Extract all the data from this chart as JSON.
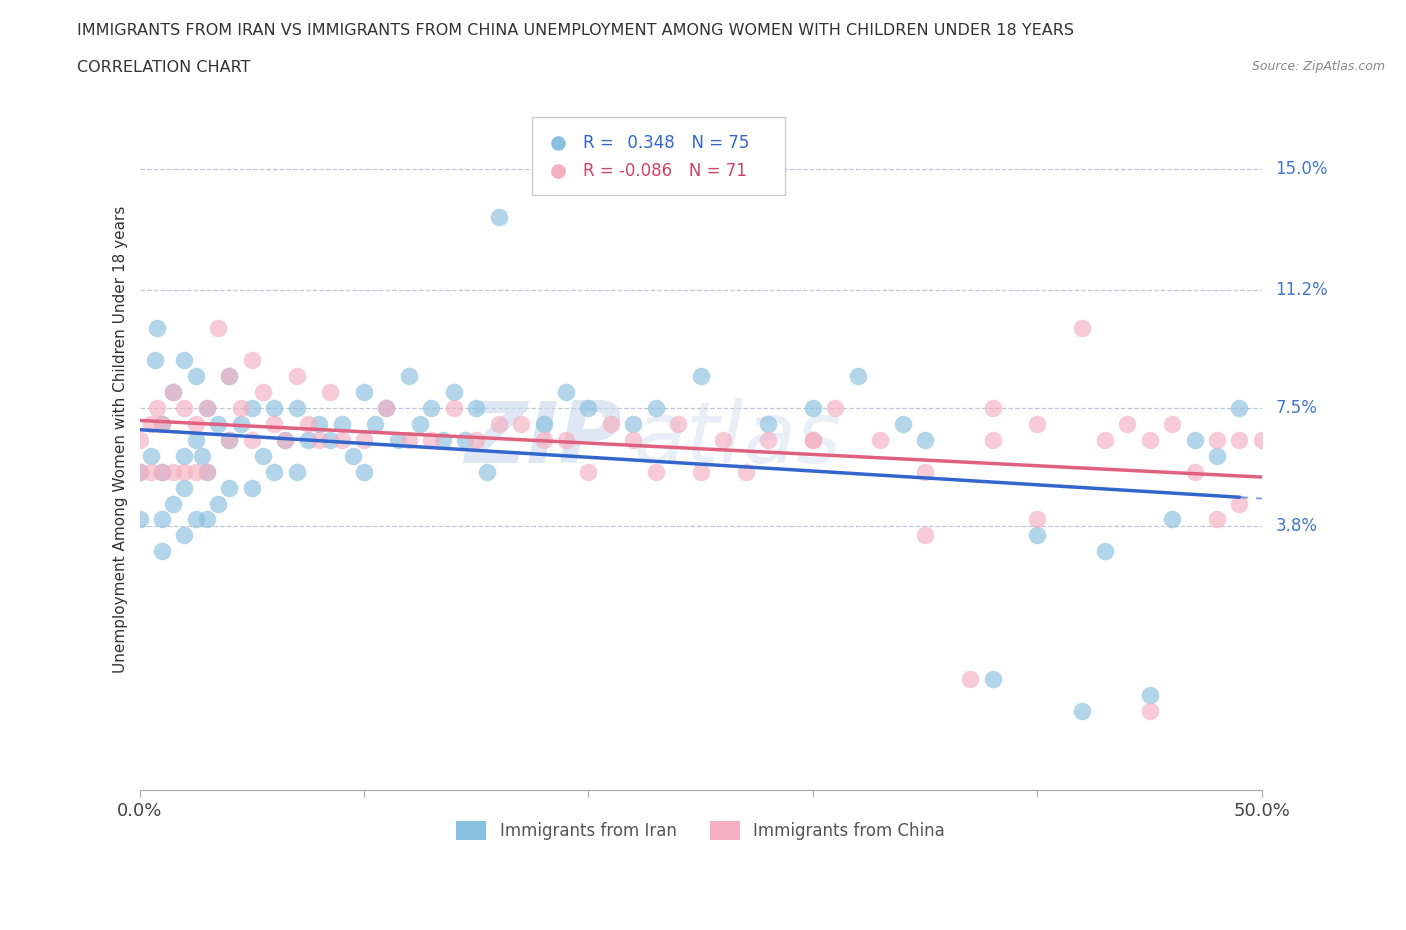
{
  "title_line1": "IMMIGRANTS FROM IRAN VS IMMIGRANTS FROM CHINA UNEMPLOYMENT AMONG WOMEN WITH CHILDREN UNDER 18 YEARS",
  "title_line2": "CORRELATION CHART",
  "source_text": "Source: ZipAtlas.com",
  "ylabel": "Unemployment Among Women with Children Under 18 years",
  "ytick_labels": [
    "3.8%",
    "7.5%",
    "11.2%",
    "15.0%"
  ],
  "ytick_values": [
    0.038,
    0.075,
    0.112,
    0.15
  ],
  "xlim": [
    0.0,
    0.5
  ],
  "ylim": [
    -0.045,
    0.175
  ],
  "iran_R": 0.348,
  "iran_N": 75,
  "china_R": -0.086,
  "china_N": 71,
  "iran_color": "#89bfdf",
  "china_color": "#f4afc0",
  "iran_line_color": "#3366cc",
  "china_line_color": "#e06080",
  "watermark_text": "ZIPatlas",
  "legend_iran_label": "Immigrants from Iran",
  "legend_china_label": "Immigrants from China",
  "iran_scatter_x": [
    0.0,
    0.0,
    0.005,
    0.007,
    0.008,
    0.01,
    0.01,
    0.01,
    0.01,
    0.015,
    0.015,
    0.02,
    0.02,
    0.02,
    0.02,
    0.025,
    0.025,
    0.025,
    0.028,
    0.03,
    0.03,
    0.03,
    0.035,
    0.035,
    0.04,
    0.04,
    0.04,
    0.045,
    0.05,
    0.05,
    0.055,
    0.06,
    0.06,
    0.065,
    0.07,
    0.07,
    0.075,
    0.08,
    0.085,
    0.09,
    0.095,
    0.1,
    0.1,
    0.105,
    0.11,
    0.115,
    0.12,
    0.125,
    0.13,
    0.135,
    0.14,
    0.145,
    0.15,
    0.155,
    0.16,
    0.18,
    0.19,
    0.2,
    0.22,
    0.23,
    0.25,
    0.28,
    0.3,
    0.32,
    0.34,
    0.35,
    0.38,
    0.4,
    0.42,
    0.43,
    0.45,
    0.46,
    0.47,
    0.48,
    0.49
  ],
  "iran_scatter_y": [
    0.04,
    0.055,
    0.06,
    0.09,
    0.1,
    0.07,
    0.055,
    0.04,
    0.03,
    0.08,
    0.045,
    0.09,
    0.06,
    0.05,
    0.035,
    0.085,
    0.065,
    0.04,
    0.06,
    0.075,
    0.055,
    0.04,
    0.07,
    0.045,
    0.085,
    0.065,
    0.05,
    0.07,
    0.075,
    0.05,
    0.06,
    0.075,
    0.055,
    0.065,
    0.075,
    0.055,
    0.065,
    0.07,
    0.065,
    0.07,
    0.06,
    0.08,
    0.055,
    0.07,
    0.075,
    0.065,
    0.085,
    0.07,
    0.075,
    0.065,
    0.08,
    0.065,
    0.075,
    0.055,
    0.135,
    0.07,
    0.08,
    0.075,
    0.07,
    0.075,
    0.085,
    0.07,
    0.075,
    0.085,
    0.07,
    0.065,
    -0.01,
    0.035,
    -0.02,
    0.03,
    -0.015,
    0.04,
    0.065,
    0.06,
    0.075
  ],
  "china_scatter_x": [
    0.0,
    0.0,
    0.005,
    0.005,
    0.008,
    0.01,
    0.01,
    0.015,
    0.015,
    0.02,
    0.02,
    0.025,
    0.025,
    0.03,
    0.03,
    0.035,
    0.04,
    0.04,
    0.045,
    0.05,
    0.05,
    0.055,
    0.06,
    0.065,
    0.07,
    0.075,
    0.08,
    0.085,
    0.09,
    0.1,
    0.11,
    0.12,
    0.13,
    0.14,
    0.15,
    0.16,
    0.17,
    0.18,
    0.19,
    0.2,
    0.21,
    0.22,
    0.23,
    0.24,
    0.25,
    0.26,
    0.27,
    0.28,
    0.3,
    0.31,
    0.33,
    0.35,
    0.37,
    0.38,
    0.38,
    0.4,
    0.42,
    0.43,
    0.44,
    0.45,
    0.46,
    0.47,
    0.48,
    0.49,
    0.49,
    0.5,
    0.3,
    0.35,
    0.4,
    0.45,
    0.48
  ],
  "china_scatter_y": [
    0.065,
    0.055,
    0.07,
    0.055,
    0.075,
    0.07,
    0.055,
    0.08,
    0.055,
    0.075,
    0.055,
    0.07,
    0.055,
    0.075,
    0.055,
    0.1,
    0.085,
    0.065,
    0.075,
    0.09,
    0.065,
    0.08,
    0.07,
    0.065,
    0.085,
    0.07,
    0.065,
    0.08,
    0.065,
    0.065,
    0.075,
    0.065,
    0.065,
    0.075,
    0.065,
    0.07,
    0.07,
    0.065,
    0.065,
    0.055,
    0.07,
    0.065,
    0.055,
    0.07,
    0.055,
    0.065,
    0.055,
    0.065,
    0.065,
    0.075,
    0.065,
    0.055,
    -0.01,
    0.075,
    0.065,
    0.07,
    0.1,
    0.065,
    0.07,
    0.065,
    0.07,
    0.055,
    0.04,
    0.065,
    0.045,
    0.065,
    0.065,
    0.035,
    0.04,
    -0.02,
    0.065
  ]
}
